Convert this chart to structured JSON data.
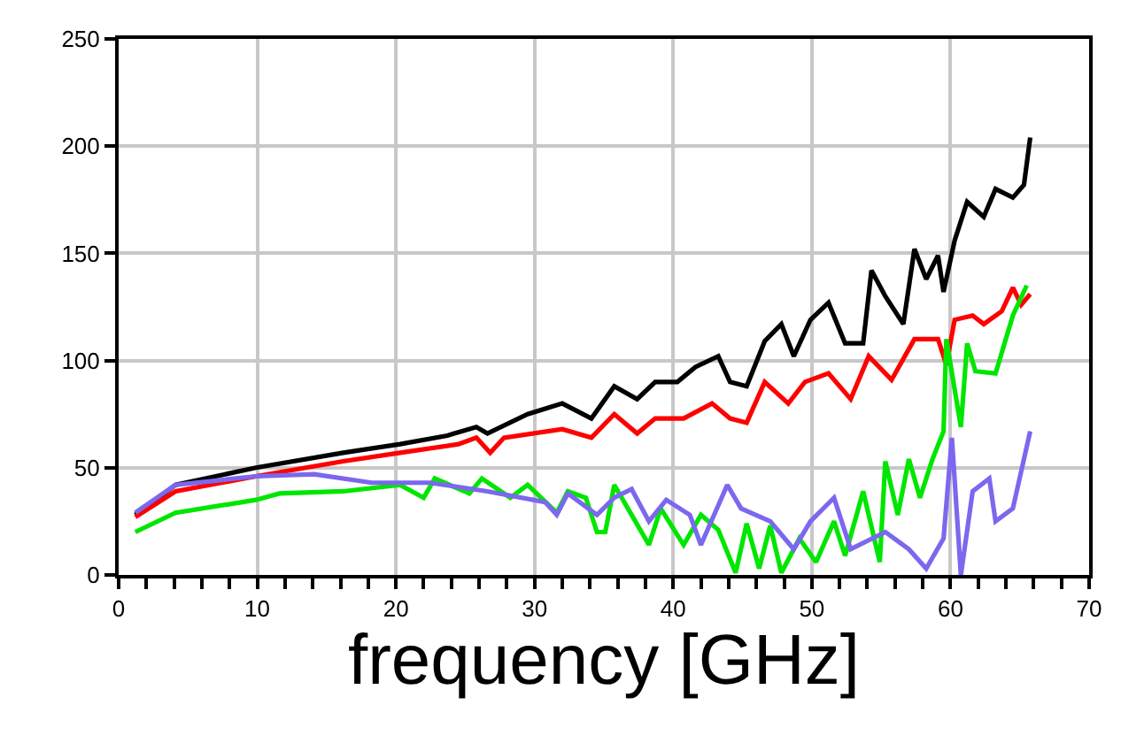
{
  "chart_data": {
    "type": "line",
    "xlabel": "frequency [GHz]",
    "xlim": [
      0,
      70
    ],
    "xticks": [
      0,
      {
        "value": 2,
        "label": null
      },
      {
        "value": 4,
        "label": null
      },
      {
        "value": 6,
        "label": null
      },
      {
        "value": 8,
        "label": null
      },
      10,
      {
        "value": 12,
        "label": null
      },
      {
        "value": 14,
        "label": null
      },
      {
        "value": 16,
        "label": null
      },
      {
        "value": 18,
        "label": null
      },
      20,
      {
        "value": 22,
        "label": null
      },
      {
        "value": 24,
        "label": null
      },
      {
        "value": 26,
        "label": null
      },
      {
        "value": 28,
        "label": null
      },
      30,
      {
        "value": 32,
        "label": null
      },
      {
        "value": 34,
        "label": null
      },
      {
        "value": 36,
        "label": null
      },
      {
        "value": 38,
        "label": null
      },
      40,
      {
        "value": 42,
        "label": null
      },
      {
        "value": 44,
        "label": null
      },
      {
        "value": 46,
        "label": null
      },
      {
        "value": 48,
        "label": null
      },
      50,
      {
        "value": 52,
        "label": null
      },
      {
        "value": 54,
        "label": null
      },
      {
        "value": 56,
        "label": null
      },
      {
        "value": 58,
        "label": null
      },
      60,
      {
        "value": 62,
        "label": null
      },
      {
        "value": 64,
        "label": null
      },
      {
        "value": 66,
        "label": null
      },
      {
        "value": 68,
        "label": null
      },
      70
    ],
    "ylim": [
      0,
      250
    ],
    "yticks": [
      0,
      50,
      100,
      150,
      200,
      250
    ],
    "grid": true,
    "marker": "none",
    "line_style": "solid",
    "series": [
      {
        "color": "#000000",
        "x": [
          1.2,
          4.1,
          9.9,
          16.2,
          20.3,
          23.7,
          25.8,
          26.6,
          29.5,
          32,
          34.1,
          35.75,
          37.4,
          38.7,
          40.3,
          41.6,
          43.25,
          44.1,
          45.3,
          46.6,
          47.8,
          48.7,
          49.9,
          51.2,
          52.4,
          53.7,
          54.3,
          55.3,
          56.6,
          57.4,
          58.25,
          59.1,
          59.5,
          60.3,
          61.2,
          62.4,
          63.25,
          64.5,
          65.3,
          65.75
        ],
        "values": [
          28,
          42,
          50,
          57,
          61,
          65,
          69,
          66,
          75,
          80,
          73,
          88,
          82,
          90,
          90,
          97,
          102,
          90,
          88,
          109,
          117,
          102,
          119,
          127,
          108,
          108,
          142,
          130,
          117,
          152,
          138,
          149,
          132,
          156,
          174,
          167,
          180,
          176,
          182,
          204
        ]
      },
      {
        "color": "#ff0000",
        "x": [
          1.2,
          4.1,
          9.9,
          16.2,
          20.3,
          24.5,
          25.8,
          26.8,
          27.8,
          32,
          34.1,
          35.75,
          37.4,
          38.7,
          40.75,
          42.8,
          44.1,
          45.3,
          46.6,
          48.3,
          49.5,
          51.2,
          52.8,
          54.1,
          55.75,
          57.4,
          59.1,
          59.7,
          60.3,
          61.6,
          62.4,
          63.7,
          64.5,
          65.1,
          65.75
        ],
        "values": [
          27,
          39,
          46,
          53,
          57,
          61,
          64,
          57,
          64,
          68,
          64,
          75,
          66,
          73,
          73,
          80,
          73,
          71,
          90,
          80,
          90,
          94,
          82,
          102,
          91,
          110,
          110,
          98,
          119,
          121,
          117,
          123,
          134,
          126,
          131
        ]
      },
      {
        "color": "#00e600",
        "x": [
          1.2,
          4.1,
          9.9,
          11.6,
          16.2,
          20.3,
          22,
          22.8,
          25.3,
          26.2,
          28.25,
          29.5,
          31.6,
          32.4,
          33.7,
          34.5,
          35.1,
          35.75,
          37,
          38.25,
          39.1,
          40.75,
          42,
          43.25,
          44.5,
          45.3,
          46.2,
          47,
          47.8,
          49.1,
          50.3,
          51.6,
          52.4,
          53.7,
          54.9,
          55.3,
          56.2,
          57,
          57.8,
          58.7,
          59.5,
          59.7,
          60.75,
          61.2,
          61.8,
          63.25,
          64.5,
          65.5
        ],
        "values": [
          20,
          29,
          35,
          38,
          39,
          42,
          36,
          45,
          38,
          45,
          36,
          42,
          29,
          39,
          36,
          20,
          20,
          42,
          28,
          14,
          31,
          14,
          28,
          21,
          1,
          24,
          3,
          23,
          1,
          17,
          6,
          25,
          9,
          39,
          6,
          53,
          28,
          54,
          36,
          54,
          67,
          110,
          69,
          108,
          95,
          94,
          121,
          135
        ]
      },
      {
        "color": "#7b68ee",
        "x": [
          1.2,
          4.1,
          9.9,
          14.1,
          18.25,
          22.4,
          26.6,
          30.75,
          31.6,
          32.4,
          34.5,
          35.75,
          37,
          38.25,
          39.5,
          41.2,
          42,
          43.9,
          44.9,
          47,
          48.7,
          49.9,
          51.6,
          52.8,
          55.3,
          57,
          58.25,
          59.5,
          60.1,
          60.75,
          61.6,
          62.8,
          63.25,
          64.5,
          65.75
        ],
        "values": [
          29,
          42,
          46,
          47,
          43,
          43,
          39,
          34,
          28,
          38,
          28,
          36,
          40,
          25,
          35,
          28,
          14,
          42,
          31,
          25,
          12,
          25,
          36,
          12,
          20,
          12,
          3,
          17,
          64,
          0,
          39,
          45,
          25,
          31,
          67
        ]
      }
    ]
  }
}
